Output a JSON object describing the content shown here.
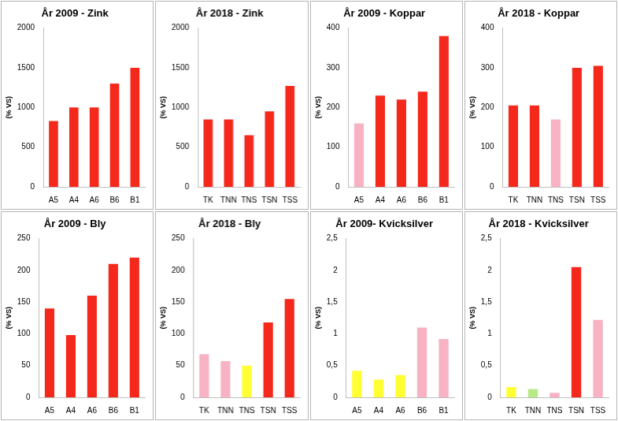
{
  "chart_data": [
    {
      "type": "bar",
      "title": "År 2009 - Zink",
      "y_label": "(% VS)",
      "categories": [
        "A5",
        "A4",
        "A6",
        "B6",
        "B1"
      ],
      "values": [
        830,
        1000,
        1000,
        1300,
        1500
      ],
      "colors": [
        "#f5281c",
        "#f5281c",
        "#f5281c",
        "#f5281c",
        "#f5281c"
      ],
      "ylim": [
        0,
        2000
      ],
      "yticks": [
        0,
        500,
        1000,
        1500,
        2000
      ],
      "grid": false
    },
    {
      "type": "bar",
      "title": "År 2018 - Zink",
      "y_label": "(% VS)",
      "categories": [
        "TK",
        "TNN",
        "TNS",
        "TSN",
        "TSS"
      ],
      "values": [
        850,
        850,
        650,
        950,
        1270
      ],
      "colors": [
        "#f5281c",
        "#f5281c",
        "#f5281c",
        "#f5281c",
        "#f5281c"
      ],
      "ylim": [
        0,
        2000
      ],
      "yticks": [
        0,
        500,
        1000,
        1500,
        2000
      ],
      "grid": false
    },
    {
      "type": "bar",
      "title": "År 2009 - Koppar",
      "y_label": "(% VS)",
      "categories": [
        "A5",
        "A4",
        "A6",
        "B6",
        "B1"
      ],
      "values": [
        160,
        230,
        220,
        240,
        380
      ],
      "colors": [
        "#f7b3c4",
        "#f5281c",
        "#f5281c",
        "#f5281c",
        "#f5281c"
      ],
      "ylim": [
        0,
        400
      ],
      "yticks": [
        0,
        100,
        200,
        300,
        400
      ],
      "grid": false
    },
    {
      "type": "bar",
      "title": "År 2018 - Koppar",
      "y_label": "(% VS)",
      "categories": [
        "TK",
        "TNN",
        "TNS",
        "TSN",
        "TSS"
      ],
      "values": [
        205,
        205,
        170,
        300,
        305
      ],
      "colors": [
        "#f5281c",
        "#f5281c",
        "#f7b3c4",
        "#f5281c",
        "#f5281c"
      ],
      "ylim": [
        0,
        400
      ],
      "yticks": [
        0,
        100,
        200,
        300,
        400
      ],
      "grid": false
    },
    {
      "type": "bar",
      "title": "År 2009 - Bly",
      "y_label": "(% VS)",
      "categories": [
        "A5",
        "A4",
        "A6",
        "B6",
        "B1"
      ],
      "values": [
        140,
        98,
        160,
        210,
        220
      ],
      "colors": [
        "#f5281c",
        "#f5281c",
        "#f5281c",
        "#f5281c",
        "#f5281c"
      ],
      "ylim": [
        0,
        250
      ],
      "yticks": [
        0,
        50,
        100,
        150,
        200,
        250
      ],
      "grid": false
    },
    {
      "type": "bar",
      "title": "År 2018 - Bly",
      "y_label": "(% VS)",
      "categories": [
        "TK",
        "TNN",
        "TNS",
        "TSN",
        "TSS"
      ],
      "values": [
        68,
        57,
        50,
        118,
        155
      ],
      "colors": [
        "#f7b3c4",
        "#f7b3c4",
        "#ffff33",
        "#f5281c",
        "#f5281c"
      ],
      "ylim": [
        0,
        250
      ],
      "yticks": [
        0,
        50,
        100,
        150,
        200,
        250
      ],
      "grid": false
    },
    {
      "type": "bar",
      "title": "År 2009- Kvicksilver",
      "y_label": "(% VS)",
      "categories": [
        "A5",
        "A4",
        "A6",
        "B6",
        "B1"
      ],
      "values": [
        0.42,
        0.28,
        0.35,
        1.1,
        0.92
      ],
      "colors": [
        "#ffff33",
        "#ffff33",
        "#ffff33",
        "#f7b3c4",
        "#f7b3c4"
      ],
      "ylim": [
        0,
        2.5
      ],
      "yticks": [
        0,
        {
          "value": 0.5,
          "label": "0,5"
        },
        1,
        {
          "value": 1.5,
          "label": "1,5"
        },
        2,
        {
          "value": 2.5,
          "label": "2,5"
        }
      ],
      "grid": false
    },
    {
      "type": "bar",
      "title": "År 2018 - Kvicksilver",
      "y_label": "(% VS)",
      "categories": [
        "TK",
        "TNN",
        "TNS",
        "TSN",
        "TSS"
      ],
      "values": [
        0.16,
        0.13,
        0.07,
        2.05,
        1.22
      ],
      "colors": [
        "#ffff33",
        "#b8e986",
        "#f7b3c4",
        "#f5281c",
        "#f7b3c4"
      ],
      "ylim": [
        0,
        2.5
      ],
      "yticks": [
        0,
        {
          "value": 0.5,
          "label": "0,5"
        },
        1,
        {
          "value": 1.5,
          "label": "1,5"
        },
        2,
        {
          "value": 2.5,
          "label": "2,5"
        }
      ],
      "grid": false
    }
  ]
}
